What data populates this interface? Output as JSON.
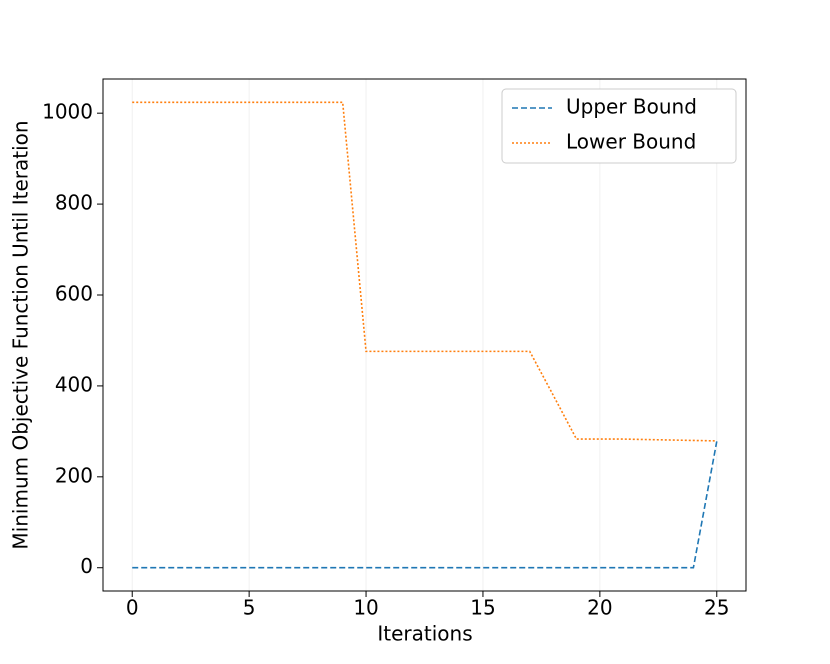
{
  "chart_data": {
    "type": "line",
    "x_label": "Iterations",
    "y_label": "Minimum Objective Function Until Iteration",
    "x": [
      0,
      1,
      2,
      3,
      4,
      5,
      6,
      7,
      8,
      9,
      10,
      11,
      12,
      13,
      14,
      15,
      16,
      17,
      18,
      19,
      20,
      21,
      22,
      23,
      24,
      25
    ],
    "series": [
      {
        "name": "Upper Bound",
        "color": "#1f77b4",
        "dash": "dashed",
        "values": [
          0,
          0,
          0,
          0,
          0,
          0,
          0,
          0,
          0,
          0,
          0,
          0,
          0,
          0,
          0,
          0,
          0,
          0,
          0,
          0,
          0,
          0,
          0,
          0,
          0,
          278
        ]
      },
      {
        "name": "Lower Bound",
        "color": "#ff7f0e",
        "dash": "dotted",
        "values": [
          1024,
          1024,
          1024,
          1024,
          1024,
          1024,
          1024,
          1024,
          1024,
          1024,
          476,
          476,
          476,
          476,
          476,
          476,
          476,
          476,
          380,
          283,
          283,
          283,
          282,
          281,
          280,
          279
        ]
      }
    ],
    "xlim": [
      -1.25,
      26.25
    ],
    "xticks": [
      0,
      5,
      10,
      15,
      20,
      25
    ],
    "ylim": [
      -51.2,
      1075.2
    ],
    "yticks": [
      0,
      200,
      400,
      600,
      800,
      1000
    ],
    "grid": "x",
    "legend": "upper right"
  }
}
